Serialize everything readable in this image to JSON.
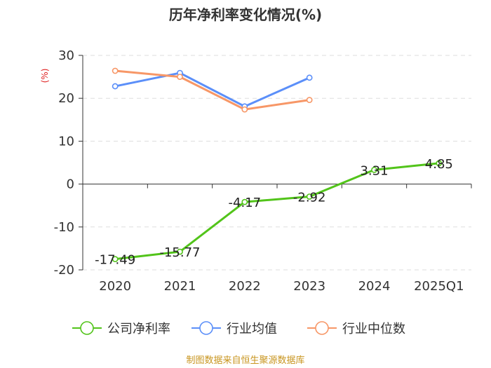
{
  "title": "历年净利率变化情况(%)",
  "source": "制图数据来自恒生聚源数据库",
  "chart_data": {
    "type": "line",
    "categories": [
      "2020",
      "2021",
      "2022",
      "2023",
      "2024",
      "2025Q1"
    ],
    "ylabel": "(%)",
    "ylim": [
      -20,
      30
    ],
    "yticks": [
      30,
      20,
      10,
      0,
      -10,
      -20
    ],
    "grid": true,
    "legend_position": "bottom",
    "series": [
      {
        "name": "公司净利率",
        "color": "#52c41a",
        "values": [
          -17.49,
          -15.77,
          -4.17,
          -2.92,
          3.31,
          4.85
        ],
        "labels": [
          "-17.49",
          "-15.77",
          "-4.17",
          "-2.92",
          "3.31",
          "4.85"
        ]
      },
      {
        "name": "行业均值",
        "color": "#5b8ff9",
        "values": [
          22.8,
          25.9,
          18.1,
          24.8,
          null,
          null
        ]
      },
      {
        "name": "行业中位数",
        "color": "#f79767",
        "values": [
          26.4,
          25.0,
          17.4,
          19.6,
          null,
          null
        ]
      }
    ]
  }
}
